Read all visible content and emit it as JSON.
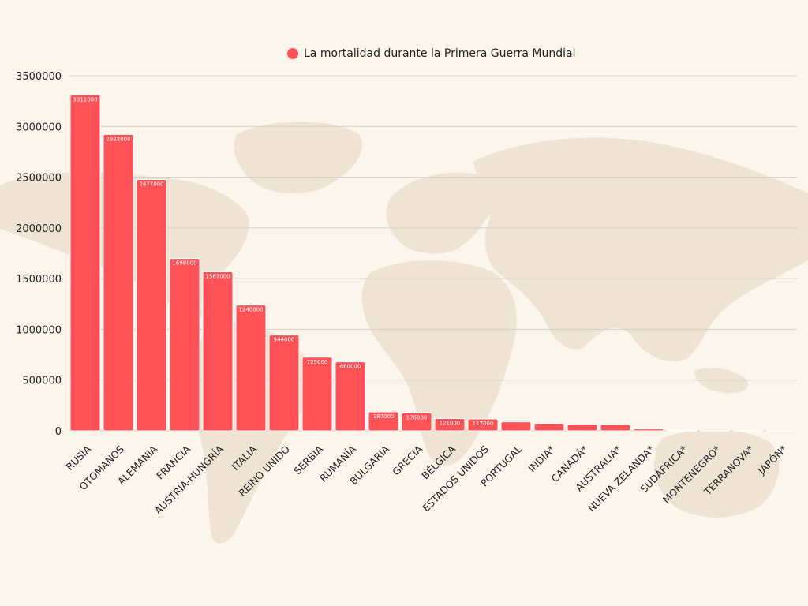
{
  "colors": {
    "bar": "#ff5257",
    "bar_edge": "#ffffff",
    "grid": "#d6d0c8",
    "map": "#efe3d3",
    "text": "#222222",
    "value_label": "#ffffff"
  },
  "legend": {
    "series_name": "La mortalidad durante la Primera Guerra Mundial"
  },
  "chart_data": {
    "type": "bar",
    "title": "",
    "xlabel": "",
    "ylabel": "",
    "ylim": [
      0,
      3500000
    ],
    "yticks": [
      0,
      500000,
      1000000,
      1500000,
      2000000,
      2500000,
      3000000,
      3500000
    ],
    "ytick_labels": [
      "0",
      "500000",
      "1000000",
      "1500000",
      "2000000",
      "2500000",
      "3000000",
      "3500000"
    ],
    "grid": true,
    "legend_position": "top-center",
    "categories": [
      "RUSIA",
      "OTOMANOS",
      "ALEMANIA",
      "FRANCIA",
      "AUSTRIA-HUNGRÍA",
      "ITALIA",
      "REINO UNIDO",
      "SERBIA",
      "RUMANÍA",
      "BULGARIA",
      "GRECIA",
      "BÉLGICA",
      "ESTADOS UNIDOS",
      "PORTUGAL",
      "INDIA*",
      "CANADÁ*",
      "AUSTRALIA*",
      "NUEVA ZELANDA*",
      "SUDÁFRICA*",
      "MONTENEGRO*",
      "TERRANOVA*",
      "JAPÓN*"
    ],
    "series": [
      {
        "name": "La mortalidad durante la Primera Guerra Mundial",
        "values": [
          3311000,
          2922000,
          2477000,
          1698000,
          1567000,
          1240000,
          944000,
          725000,
          680000,
          187000,
          176000,
          121000,
          117000,
          88000,
          74000,
          65000,
          62000,
          18000,
          7000,
          3000,
          1500,
          400
        ],
        "data_labels": [
          "3311000",
          "2922000",
          "2477000",
          "1698000",
          "1567000",
          "1240000",
          "944000",
          "725000",
          "680000",
          "187000",
          "176000",
          "121000",
          "117000",
          "",
          "",
          "",
          "",
          "",
          "",
          "",
          "",
          ""
        ]
      }
    ]
  }
}
